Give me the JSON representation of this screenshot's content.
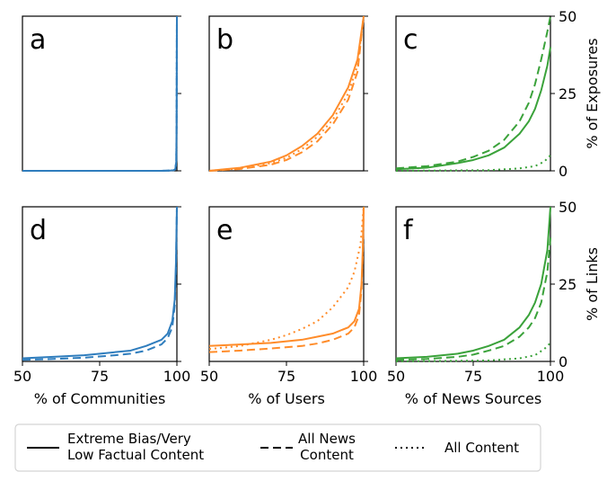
{
  "chart_data": {
    "type": "line",
    "legend": {
      "placement": "bottom",
      "entries": [
        {
          "style": "solid",
          "label_lines": [
            "Extreme Bias/Very",
            "Low Factual Content"
          ]
        },
        {
          "style": "dashed",
          "label_lines": [
            "All News",
            "Content"
          ]
        },
        {
          "style": "dotted",
          "label_lines": [
            "All Content"
          ]
        }
      ]
    },
    "rows": [
      {
        "ylabel": "% of Exposures",
        "ylim": [
          0,
          50
        ],
        "yticks": [
          "0",
          "25",
          "50"
        ]
      },
      {
        "ylabel": "% of Links",
        "ylim": [
          0,
          50
        ],
        "yticks": [
          "0",
          "25",
          "50"
        ]
      }
    ],
    "columns": [
      {
        "xlabel": "% of Communities",
        "color": "#2f7dbd"
      },
      {
        "xlabel": "% of Users",
        "color": "#ff8c2a"
      },
      {
        "xlabel": "% of News Sources",
        "color": "#3aa23a"
      }
    ],
    "xlim": [
      50,
      100
    ],
    "xticks": [
      "50",
      "75",
      "100"
    ],
    "panels": [
      {
        "letter": "a",
        "row": 0,
        "col": 0,
        "series": [
          {
            "style": "solid",
            "points": [
              [
                50,
                0
              ],
              [
                80,
                0
              ],
              [
                95,
                0
              ],
              [
                98,
                0.1
              ],
              [
                99,
                0.2
              ],
              [
                99.5,
                0.5
              ],
              [
                99.8,
                3
              ],
              [
                99.9,
                15
              ],
              [
                100,
                50
              ]
            ]
          },
          {
            "style": "dashed",
            "points": [
              [
                50,
                0
              ],
              [
                80,
                0
              ],
              [
                95,
                0
              ],
              [
                98,
                0.1
              ],
              [
                99,
                0.2
              ],
              [
                99.5,
                0.5
              ],
              [
                99.8,
                3
              ],
              [
                99.9,
                15
              ],
              [
                100,
                50
              ]
            ]
          },
          {
            "style": "dotted",
            "points": [
              [
                50,
                0
              ],
              [
                80,
                0
              ],
              [
                95,
                0
              ],
              [
                98,
                0.1
              ],
              [
                99,
                0.2
              ],
              [
                99.5,
                0.5
              ],
              [
                99.8,
                3
              ],
              [
                99.9,
                15
              ],
              [
                100,
                50
              ]
            ]
          }
        ]
      },
      {
        "letter": "b",
        "row": 0,
        "col": 1,
        "series": [
          {
            "style": "solid",
            "points": [
              [
                50,
                0
              ],
              [
                60,
                1
              ],
              [
                70,
                3
              ],
              [
                75,
                5
              ],
              [
                80,
                8
              ],
              [
                85,
                12
              ],
              [
                90,
                18
              ],
              [
                95,
                27
              ],
              [
                98,
                36
              ],
              [
                100,
                50
              ]
            ]
          },
          {
            "style": "dashed",
            "points": [
              [
                50,
                0
              ],
              [
                60,
                0.6
              ],
              [
                70,
                2
              ],
              [
                75,
                3.5
              ],
              [
                80,
                6
              ],
              [
                85,
                9.5
              ],
              [
                90,
                15
              ],
              [
                95,
                23
              ],
              [
                98,
                32
              ],
              [
                100,
                50
              ]
            ]
          },
          {
            "style": "dotted",
            "points": [
              [
                50,
                0
              ],
              [
                60,
                0.8
              ],
              [
                70,
                2.5
              ],
              [
                75,
                4.2
              ],
              [
                80,
                7
              ],
              [
                85,
                11
              ],
              [
                90,
                16.5
              ],
              [
                95,
                25
              ],
              [
                98,
                34
              ],
              [
                100,
                50
              ]
            ]
          }
        ]
      },
      {
        "letter": "c",
        "row": 0,
        "col": 2,
        "series": [
          {
            "style": "solid",
            "points": [
              [
                50,
                0.5
              ],
              [
                60,
                1
              ],
              [
                70,
                2.5
              ],
              [
                75,
                3.5
              ],
              [
                80,
                5
              ],
              [
                85,
                7.5
              ],
              [
                90,
                12
              ],
              [
                93,
                16
              ],
              [
                95,
                20
              ],
              [
                97,
                26
              ],
              [
                99,
                34
              ],
              [
                100,
                40
              ]
            ]
          },
          {
            "style": "dashed",
            "points": [
              [
                50,
                0.8
              ],
              [
                60,
                1.5
              ],
              [
                70,
                3
              ],
              [
                75,
                4.5
              ],
              [
                80,
                6.5
              ],
              [
                85,
                10
              ],
              [
                90,
                16
              ],
              [
                93,
                22
              ],
              [
                95,
                28
              ],
              [
                97,
                36
              ],
              [
                99,
                45
              ],
              [
                100,
                50
              ]
            ]
          },
          {
            "style": "dotted",
            "points": [
              [
                50,
                0
              ],
              [
                80,
                0.2
              ],
              [
                90,
                0.8
              ],
              [
                95,
                1.5
              ],
              [
                98,
                3
              ],
              [
                100,
                5
              ]
            ]
          }
        ]
      },
      {
        "letter": "d",
        "row": 1,
        "col": 0,
        "series": [
          {
            "style": "solid",
            "points": [
              [
                50,
                1
              ],
              [
                60,
                1.5
              ],
              [
                70,
                2
              ],
              [
                80,
                3
              ],
              [
                85,
                3.5
              ],
              [
                90,
                5
              ],
              [
                95,
                7
              ],
              [
                97,
                9
              ],
              [
                98.5,
                13
              ],
              [
                99.3,
                20
              ],
              [
                99.7,
                32
              ],
              [
                100,
                50
              ]
            ]
          },
          {
            "style": "dashed",
            "points": [
              [
                50,
                0.5
              ],
              [
                60,
                0.8
              ],
              [
                70,
                1.2
              ],
              [
                80,
                2
              ],
              [
                85,
                2.5
              ],
              [
                90,
                3.5
              ],
              [
                95,
                5.5
              ],
              [
                97,
                7.5
              ],
              [
                98.5,
                11
              ],
              [
                99.3,
                18
              ],
              [
                99.7,
                30
              ],
              [
                100,
                50
              ]
            ]
          }
        ]
      },
      {
        "letter": "e",
        "row": 1,
        "col": 1,
        "series": [
          {
            "style": "solid",
            "points": [
              [
                50,
                5
              ],
              [
                60,
                5.5
              ],
              [
                70,
                6
              ],
              [
                80,
                7
              ],
              [
                85,
                8
              ],
              [
                90,
                9
              ],
              [
                95,
                11
              ],
              [
                97,
                13
              ],
              [
                98.5,
                17
              ],
              [
                99.3,
                25
              ],
              [
                99.7,
                36
              ],
              [
                100,
                50
              ]
            ]
          },
          {
            "style": "dashed",
            "points": [
              [
                50,
                3
              ],
              [
                60,
                3.5
              ],
              [
                70,
                4.2
              ],
              [
                80,
                5
              ],
              [
                85,
                5.8
              ],
              [
                90,
                7
              ],
              [
                95,
                9
              ],
              [
                97,
                11
              ],
              [
                98.5,
                15
              ],
              [
                99.3,
                23
              ],
              [
                99.7,
                34
              ],
              [
                100,
                50
              ]
            ]
          },
          {
            "style": "dotted",
            "points": [
              [
                50,
                4
              ],
              [
                60,
                5
              ],
              [
                70,
                7
              ],
              [
                75,
                8.5
              ],
              [
                80,
                10.5
              ],
              [
                85,
                13
              ],
              [
                90,
                17.5
              ],
              [
                95,
                24
              ],
              [
                97,
                29
              ],
              [
                99,
                38
              ],
              [
                100,
                50
              ]
            ]
          }
        ]
      },
      {
        "letter": "f",
        "row": 1,
        "col": 2,
        "series": [
          {
            "style": "solid",
            "points": [
              [
                50,
                1
              ],
              [
                60,
                1.5
              ],
              [
                70,
                2.5
              ],
              [
                75,
                3.5
              ],
              [
                80,
                5
              ],
              [
                85,
                7
              ],
              [
                90,
                11
              ],
              [
                93,
                15
              ],
              [
                95,
                19
              ],
              [
                97,
                25
              ],
              [
                99,
                36
              ],
              [
                100,
                50
              ]
            ]
          },
          {
            "style": "dashed",
            "points": [
              [
                50,
                0.5
              ],
              [
                60,
                0.8
              ],
              [
                70,
                1.5
              ],
              [
                75,
                2.2
              ],
              [
                80,
                3.5
              ],
              [
                85,
                5
              ],
              [
                90,
                8
              ],
              [
                93,
                11
              ],
              [
                95,
                14
              ],
              [
                97,
                19
              ],
              [
                99,
                29
              ],
              [
                100,
                40
              ]
            ]
          },
          {
            "style": "dotted",
            "points": [
              [
                50,
                0
              ],
              [
                80,
                0.3
              ],
              [
                90,
                1
              ],
              [
                95,
                2
              ],
              [
                98,
                4
              ],
              [
                100,
                6
              ]
            ]
          }
        ]
      }
    ]
  }
}
